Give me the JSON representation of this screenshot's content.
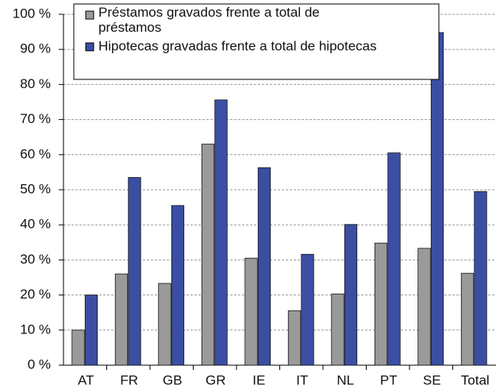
{
  "chart_data": {
    "type": "bar",
    "categories": [
      "AT",
      "FR",
      "GB",
      "GR",
      "IE",
      "IT",
      "NL",
      "PT",
      "SE",
      "Total"
    ],
    "series": [
      {
        "name": "Préstamos gravados frente a total de préstamos",
        "color": "#9a9a9a",
        "values": [
          10,
          26,
          23.3,
          63,
          30.5,
          15.5,
          20.3,
          34.8,
          33.3,
          26.2
        ]
      },
      {
        "name": "Hipotecas gravadas frente a total de hipotecas",
        "color": "#3a4fa3",
        "values": [
          20,
          53.5,
          45.5,
          75.6,
          56.3,
          31.6,
          40.1,
          60.5,
          94.8,
          49.5
        ]
      }
    ],
    "ylim": [
      0,
      100
    ],
    "yticks": [
      {
        "value": 0,
        "label": "0 %"
      },
      {
        "value": 10,
        "label": "10 %"
      },
      {
        "value": 20,
        "label": "20 %"
      },
      {
        "value": 30,
        "label": "30 %"
      },
      {
        "value": 40,
        "label": "40 %"
      },
      {
        "value": 50,
        "label": "50 %"
      },
      {
        "value": 60,
        "label": "60 %"
      },
      {
        "value": 70,
        "label": "70 %"
      },
      {
        "value": 80,
        "label": "80 %"
      },
      {
        "value": 90,
        "label": "90 %"
      },
      {
        "value": 100,
        "label": "100 %"
      }
    ],
    "grid": true,
    "legend": "top"
  }
}
